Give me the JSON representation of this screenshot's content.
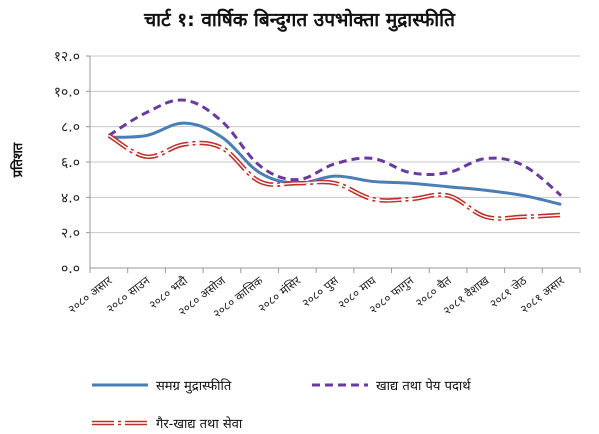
{
  "chart_data": {
    "type": "line",
    "title": "चार्ट १: वार्षिक बिन्दुगत उपभोक्ता मुद्रास्फीति",
    "ylabel": "प्रतिशत",
    "xlabel": "",
    "ylim": [
      0,
      12
    ],
    "yticks": [
      "०.०",
      "२.०",
      "४.०",
      "६.०",
      "८.०",
      "१०.०",
      "१२.०"
    ],
    "ytick_values": [
      0,
      2,
      4,
      6,
      8,
      10,
      12
    ],
    "grid": "horizontal",
    "legend_position": "bottom",
    "categories": [
      "२०८० असार",
      "२०८० साउन",
      "२०८० भदौ",
      "२०८० असोज",
      "२०८० कात्तिक",
      "२०८० मंसिर",
      "२०८० पुस",
      "२०८० माघ",
      "२०८० फागुन",
      "२०८० चैत",
      "२०८१ वैशाख",
      "२०८१ जेठ",
      "२०८१ असार"
    ],
    "series": [
      {
        "name": "समग्र मुद्रास्फीति",
        "color": "#4a7eb5",
        "style": "solid",
        "values": [
          7.4,
          7.5,
          8.2,
          7.4,
          5.4,
          4.8,
          5.2,
          4.9,
          4.8,
          4.6,
          4.4,
          4.1,
          3.6
        ]
      },
      {
        "name": "खाद्य तथा पेय पदार्थ",
        "color": "#6a3a9e",
        "style": "dashed",
        "values": [
          7.5,
          8.8,
          9.5,
          8.3,
          5.8,
          5.0,
          5.9,
          6.2,
          5.4,
          5.4,
          6.2,
          5.8,
          4.1
        ]
      },
      {
        "name": "गैर-खाद्य तथा सेवा",
        "color": "#c0302a",
        "style": "double-dashed",
        "values": [
          7.5,
          6.3,
          7.0,
          6.8,
          4.9,
          4.8,
          4.8,
          3.9,
          3.9,
          4.1,
          2.9,
          2.9,
          3.0
        ]
      }
    ]
  }
}
